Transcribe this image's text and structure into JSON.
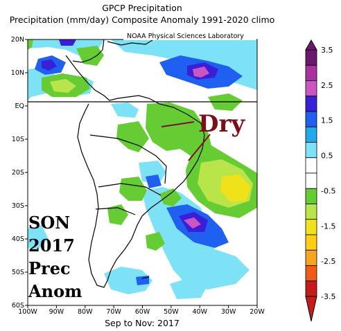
{
  "title_line1": "GPCP Precipitation",
  "title_line2": "Precipitation (mm/day) Composite Anomaly 1991-2020 climo",
  "footer": "Sep to Nov: 2017",
  "credit": "NOAA Physical Sciences Laboratory",
  "annotation_dry": "Dry",
  "season_label": [
    "SON",
    "2017",
    "Prec",
    "Anom"
  ],
  "lat_labels": [
    "20N",
    "10N",
    "EQ",
    "10S",
    "20S",
    "30S",
    "40S",
    "50S",
    "60S"
  ],
  "lon_labels": [
    "100W",
    "90W",
    "80W",
    "70W",
    "60W",
    "50W",
    "40W",
    "30W",
    "20W"
  ],
  "map_extent": {
    "lon_min": -100,
    "lon_max": -20,
    "lat_min": -60,
    "lat_max": 20
  },
  "colorbar": {
    "ticks": [
      "3.5",
      "2.5",
      "1.5",
      "0.5",
      "-0.5",
      "-1.5",
      "-2.5",
      "-3.5"
    ],
    "colors_top_to_bottom": [
      "#6a1870",
      "#a8329f",
      "#cc55c4",
      "#3a1fd8",
      "#2060f0",
      "#1fa8ea",
      "#7de2f5",
      "#ffffff",
      "#ffffff",
      "#66cc33",
      "#b9e44a",
      "#efe21a",
      "#ffcd12",
      "#f7a51f",
      "#ee5b18",
      "#c51b1b"
    ]
  },
  "colors": {
    "dry_annotation": "#7b1018",
    "equator_line": "#000000"
  }
}
